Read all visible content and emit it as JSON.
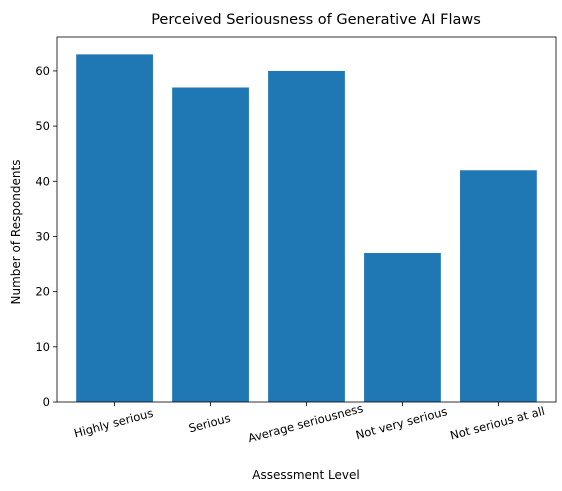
{
  "chart_data": {
    "type": "bar",
    "title": "Perceived Seriousness of Generative AI Flaws",
    "xlabel": "Assessment Level",
    "ylabel": "Number of Respondents",
    "categories": [
      "Highly serious",
      "Serious",
      "Average seriousness",
      "Not very serious",
      "Not serious at all"
    ],
    "values": [
      63,
      57,
      60,
      27,
      42
    ],
    "ylim": [
      0,
      66.15
    ],
    "yticks": [
      0,
      10,
      20,
      30,
      40,
      50,
      60
    ],
    "bar_color": "#1f77b4",
    "grid": false,
    "legend": "none"
  }
}
